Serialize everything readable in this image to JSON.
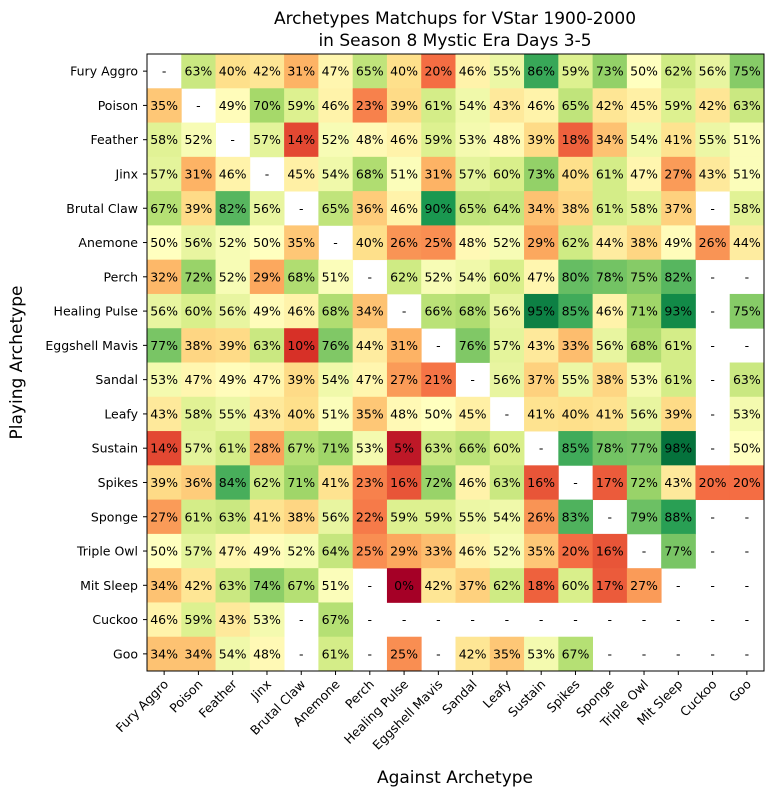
{
  "chart_data": {
    "type": "heatmap",
    "title": [
      "Archetypes Matchups for VStar 1900-2000",
      "in Season 8 Mystic Era Days 3-5"
    ],
    "xlabel": "Against Archetype",
    "ylabel": "Playing Archetype",
    "value_range": [
      0,
      100
    ],
    "colormap": "RdYlGn",
    "missing_label": "-",
    "rows": [
      "Fury Aggro",
      "Poison",
      "Feather",
      "Jinx",
      "Brutal Claw",
      "Anemone",
      "Perch",
      "Healing Pulse",
      "Eggshell Mavis",
      "Sandal",
      "Leafy",
      "Sustain",
      "Spikes",
      "Sponge",
      "Triple Owl",
      "Mit Sleep",
      "Cuckoo",
      "Goo"
    ],
    "columns": [
      "Fury Aggro",
      "Poison",
      "Feather",
      "Jinx",
      "Brutal Claw",
      "Anemone",
      "Perch",
      "Healing Pulse",
      "Eggshell Mavis",
      "Sandal",
      "Leafy",
      "Sustain",
      "Spikes",
      "Sponge",
      "Triple Owl",
      "Mit Sleep",
      "Cuckoo",
      "Goo"
    ],
    "values": [
      [
        null,
        63,
        40,
        42,
        31,
        47,
        65,
        40,
        20,
        46,
        55,
        86,
        59,
        73,
        50,
        62,
        56,
        75
      ],
      [
        35,
        null,
        49,
        70,
        59,
        46,
        23,
        39,
        61,
        54,
        43,
        46,
        65,
        42,
        45,
        59,
        42,
        63
      ],
      [
        58,
        52,
        null,
        57,
        14,
        52,
        48,
        46,
        59,
        53,
        48,
        39,
        18,
        34,
        54,
        41,
        55,
        51
      ],
      [
        57,
        31,
        46,
        null,
        45,
        54,
        68,
        51,
        31,
        57,
        60,
        73,
        40,
        61,
        47,
        27,
        43,
        51
      ],
      [
        67,
        39,
        82,
        56,
        null,
        65,
        36,
        46,
        90,
        65,
        64,
        34,
        38,
        61,
        58,
        37,
        null,
        58
      ],
      [
        50,
        56,
        52,
        50,
        35,
        null,
        40,
        26,
        25,
        48,
        52,
        29,
        62,
        44,
        38,
        49,
        26,
        44
      ],
      [
        32,
        72,
        52,
        29,
        68,
        51,
        null,
        62,
        52,
        54,
        60,
        47,
        80,
        78,
        75,
        82,
        null,
        null
      ],
      [
        56,
        60,
        56,
        49,
        46,
        68,
        34,
        null,
        66,
        68,
        56,
        95,
        85,
        46,
        71,
        93,
        null,
        75
      ],
      [
        77,
        38,
        39,
        63,
        10,
        76,
        44,
        31,
        null,
        76,
        57,
        43,
        33,
        56,
        68,
        61,
        null,
        null
      ],
      [
        53,
        47,
        49,
        47,
        39,
        54,
        47,
        27,
        21,
        null,
        56,
        37,
        55,
        38,
        53,
        61,
        null,
        63
      ],
      [
        43,
        58,
        55,
        43,
        40,
        51,
        35,
        48,
        50,
        45,
        null,
        41,
        40,
        41,
        56,
        39,
        null,
        53
      ],
      [
        14,
        57,
        61,
        28,
        67,
        71,
        53,
        5,
        63,
        66,
        60,
        null,
        85,
        78,
        77,
        98,
        null,
        50
      ],
      [
        39,
        36,
        84,
        62,
        71,
        41,
        23,
        16,
        72,
        46,
        63,
        16,
        null,
        17,
        72,
        43,
        20,
        20
      ],
      [
        27,
        61,
        63,
        41,
        38,
        56,
        22,
        59,
        59,
        55,
        54,
        26,
        83,
        null,
        79,
        88,
        null,
        null
      ],
      [
        50,
        57,
        47,
        49,
        52,
        64,
        25,
        29,
        33,
        46,
        52,
        35,
        20,
        16,
        null,
        77,
        null,
        null
      ],
      [
        34,
        42,
        63,
        74,
        67,
        51,
        null,
        0,
        42,
        37,
        62,
        18,
        60,
        17,
        27,
        null,
        null,
        null
      ],
      [
        46,
        59,
        43,
        53,
        null,
        67,
        null,
        null,
        null,
        null,
        null,
        null,
        null,
        null,
        null,
        null,
        null,
        null
      ],
      [
        34,
        34,
        54,
        48,
        null,
        61,
        null,
        25,
        null,
        42,
        35,
        53,
        67,
        null,
        null,
        null,
        null,
        null
      ]
    ]
  }
}
